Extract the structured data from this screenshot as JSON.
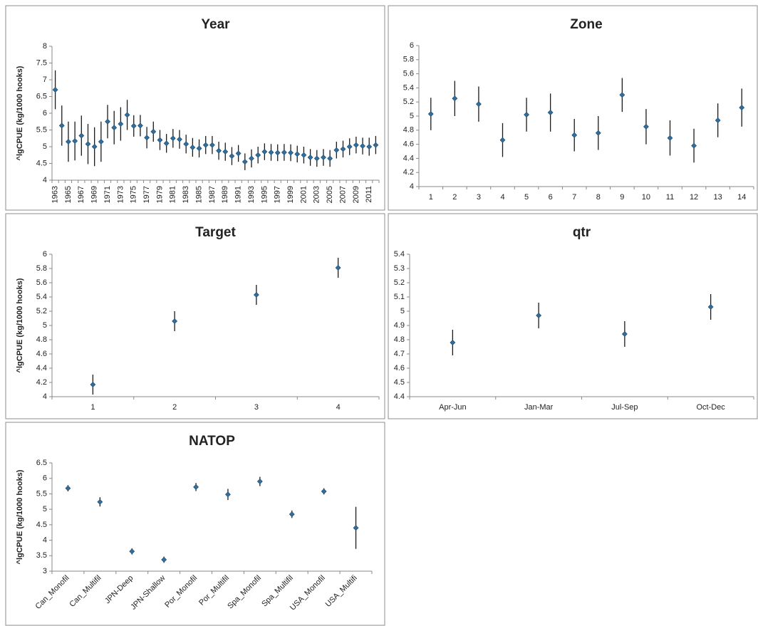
{
  "chart_data": [
    {
      "type": "errorbar",
      "title": "Year",
      "y_label": "^lgCPUE (kg/1000 hooks)",
      "categories": [
        "1963",
        null,
        "1965",
        null,
        "1967",
        null,
        "1969",
        null,
        "1971",
        null,
        "1973",
        null,
        "1975",
        null,
        "1977",
        null,
        "1979",
        null,
        "1981",
        null,
        "1983",
        null,
        "1985",
        null,
        "1987",
        null,
        "1989",
        null,
        "1991",
        null,
        "1993",
        null,
        "1995",
        null,
        "1997",
        null,
        "1999",
        null,
        "2001",
        null,
        "2003",
        null,
        "2005",
        null,
        "2007",
        null,
        "2009",
        null,
        "2011",
        null
      ],
      "values": [
        6.7,
        5.63,
        5.15,
        5.17,
        5.33,
        5.08,
        5.0,
        5.15,
        5.75,
        5.57,
        5.68,
        5.95,
        5.62,
        5.63,
        5.27,
        5.45,
        5.2,
        5.1,
        5.25,
        5.22,
        5.08,
        4.98,
        4.95,
        5.05,
        5.05,
        4.88,
        4.85,
        4.72,
        4.8,
        4.55,
        4.65,
        4.75,
        4.85,
        4.83,
        4.82,
        4.83,
        4.82,
        4.78,
        4.75,
        4.68,
        4.65,
        4.68,
        4.65,
        4.9,
        4.93,
        5.0,
        5.05,
        5.02,
        5.0,
        5.05
      ],
      "errors": [
        0.58,
        0.6,
        0.6,
        0.58,
        0.6,
        0.6,
        0.58,
        0.6,
        0.5,
        0.5,
        0.5,
        0.45,
        0.32,
        0.32,
        0.32,
        0.3,
        0.3,
        0.28,
        0.28,
        0.28,
        0.28,
        0.28,
        0.27,
        0.27,
        0.27,
        0.27,
        0.27,
        0.27,
        0.25,
        0.25,
        0.27,
        0.25,
        0.25,
        0.25,
        0.25,
        0.25,
        0.25,
        0.25,
        0.25,
        0.25,
        0.25,
        0.25,
        0.25,
        0.25,
        0.25,
        0.25,
        0.25,
        0.25,
        0.27,
        0.27
      ],
      "color": "#2f6e9e",
      "ylim": [
        4,
        8
      ],
      "yticks": [
        4,
        4.5,
        5,
        5.5,
        6,
        6.5,
        7,
        7.5,
        8
      ]
    },
    {
      "type": "errorbar",
      "title": "Zone",
      "categories": [
        "1",
        "2",
        "3",
        "4",
        "5",
        "6",
        "7",
        "8",
        "9",
        "10",
        "11",
        "12",
        "13",
        "14"
      ],
      "values": [
        5.03,
        5.25,
        5.17,
        4.66,
        5.02,
        5.05,
        4.73,
        4.76,
        5.3,
        4.85,
        4.69,
        4.58,
        4.94,
        5.12
      ],
      "errors": [
        0.23,
        0.25,
        0.25,
        0.24,
        0.24,
        0.27,
        0.23,
        0.24,
        0.24,
        0.25,
        0.25,
        0.24,
        0.24,
        0.27
      ],
      "color": "#2f6e9e",
      "ylim": [
        4,
        6
      ],
      "yticks": [
        4,
        4.2,
        4.4,
        4.6,
        4.8,
        5,
        5.2,
        5.4,
        5.6,
        5.8,
        6
      ]
    },
    {
      "type": "errorbar",
      "title": "Target",
      "y_label": "^lgCPUE (kg/1000 hooks)",
      "categories": [
        "1",
        "2",
        "3",
        "4"
      ],
      "values": [
        4.17,
        5.06,
        5.43,
        5.81
      ],
      "errors": [
        0.14,
        0.14,
        0.14,
        0.14
      ],
      "color": "#2f6e9e",
      "ylim": [
        4,
        6
      ],
      "yticks": [
        4,
        4.2,
        4.4,
        4.6,
        4.8,
        5,
        5.2,
        5.4,
        5.6,
        5.8,
        6
      ]
    },
    {
      "type": "errorbar",
      "title": "qtr",
      "categories": [
        "Apr-Jun",
        "Jan-Mar",
        "Jul-Sep",
        "Oct-Dec"
      ],
      "values": [
        4.78,
        4.97,
        4.84,
        5.03
      ],
      "errors": [
        0.09,
        0.09,
        0.09,
        0.09
      ],
      "color": "#2f6e9e",
      "ylim": [
        4.4,
        5.4
      ],
      "yticks": [
        4.4,
        4.5,
        4.6,
        4.7,
        4.8,
        4.9,
        5,
        5.1,
        5.2,
        5.3,
        5.4
      ]
    },
    {
      "type": "errorbar",
      "title": "NATOP",
      "y_label": "^lgCPUE (kg/1000 hooks)",
      "categories": [
        "Can_Monofil",
        "Can_Multifil",
        "JPN-Deep",
        "JPN-Shallow",
        "Por_Monofil",
        "Por_Multifil",
        "Spa_Monofil",
        "Spa_Multifil",
        "USA_Monofil",
        "USA_Multifi"
      ],
      "values": [
        5.68,
        5.24,
        3.64,
        3.37,
        5.72,
        5.48,
        5.9,
        4.84,
        5.58,
        4.4
      ],
      "errors": [
        0.1,
        0.15,
        0.1,
        0.1,
        0.13,
        0.18,
        0.15,
        0.12,
        0.1,
        0.68
      ],
      "color": "#2f6e9e",
      "ylim": [
        3,
        6.5
      ],
      "yticks": [
        3,
        3.5,
        4,
        4.5,
        5,
        5.5,
        6,
        6.5
      ]
    }
  ]
}
